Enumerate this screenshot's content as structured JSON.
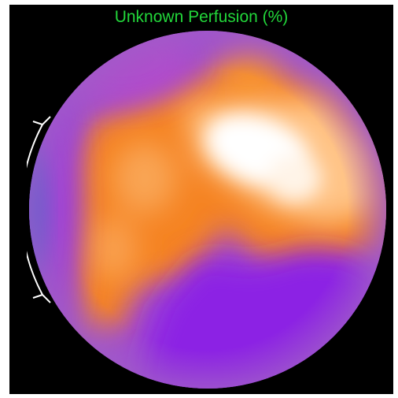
{
  "viewer": {
    "title": "Unknown Perfusion (%)"
  },
  "polar_map": {
    "colors": {
      "background": "#000000",
      "title": "#22d63a",
      "rim": "#a05cc8",
      "low": "#8a22e6",
      "mid_low": "#b040d0",
      "mid": "#f08020",
      "high": "#ffc080",
      "max": "#ffffff",
      "edge_blue": "#3d5fd0",
      "outline": "#ffffff"
    },
    "outlined_region": "septal-wall"
  }
}
